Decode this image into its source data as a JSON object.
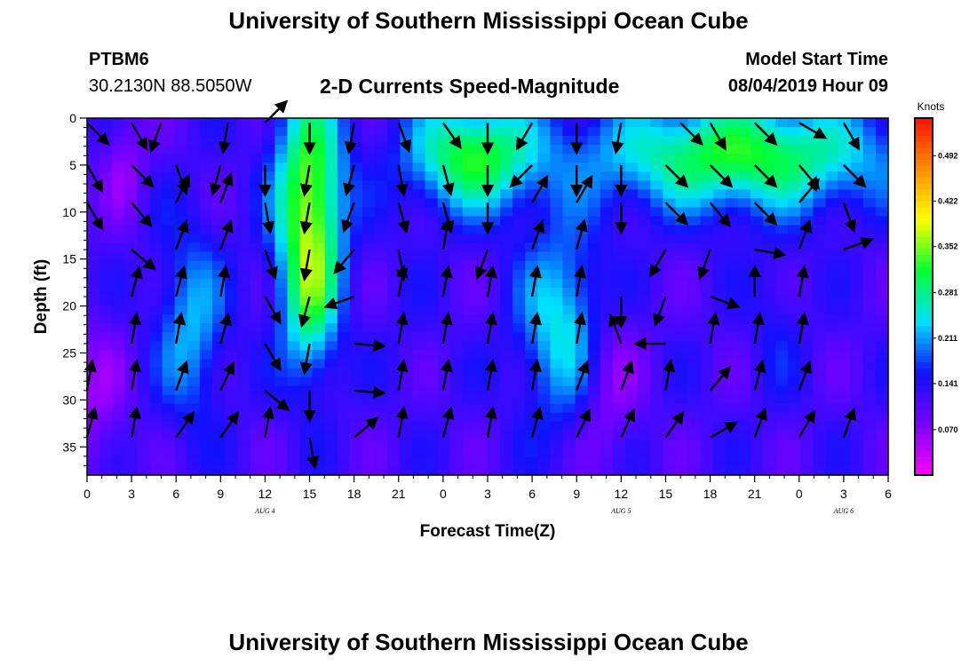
{
  "header": {
    "top_title": "University of Southern Mississippi Ocean Cube",
    "station": "PTBM6",
    "coords": "30.2130N 88.5050W",
    "chart_title": "2-D Currents Speed-Magnitude",
    "model_start_label": "Model Start Time",
    "model_start_value": "08/04/2019 Hour 09",
    "bottom_title": "University of Southern Mississippi Ocean Cube"
  },
  "chart_data": {
    "type": "heatmap",
    "title": "2-D Currents Speed-Magnitude",
    "xlabel": "Forecast Time(Z)",
    "ylabel": "Depth (ft)",
    "x_ticks": [
      "0",
      "3",
      "6",
      "9",
      "12",
      "15",
      "18",
      "21",
      "0",
      "3",
      "6",
      "9",
      "12",
      "15",
      "18",
      "21",
      "0",
      "3",
      "6"
    ],
    "x_range_hours": [
      0,
      54
    ],
    "day_labels": [
      {
        "text": "AUG 4",
        "hour": 12
      },
      {
        "text": "AUG 5",
        "hour": 36
      },
      {
        "text": "AUG 6",
        "hour": 51
      }
    ],
    "y_ticks": [
      0,
      5,
      10,
      15,
      20,
      25,
      30,
      35
    ],
    "y_range_ft": [
      0,
      38
    ],
    "colorbar": {
      "unit": "Knots",
      "labels": [
        "0.492",
        "0.422",
        "0.352",
        "0.281",
        "0.211",
        "0.141",
        "0.070"
      ],
      "label_values": [
        0.492,
        0.422,
        0.352,
        0.281,
        0.211,
        0.141,
        0.07
      ],
      "range": [
        0.0,
        0.55
      ],
      "colors": [
        "#ff00ff",
        "#7a00ff",
        "#1010ff",
        "#00e0ff",
        "#00ff30",
        "#ffff00",
        "#ff9000",
        "#ff1000"
      ]
    },
    "speed_blobs": [
      {
        "t": 7,
        "d": 22,
        "st": 1.6,
        "sd": 7,
        "v": 0.22
      },
      {
        "t": 15,
        "d": 8,
        "st": 1.6,
        "sd": 8,
        "v": 0.35
      },
      {
        "t": 15,
        "d": 20,
        "st": 1.3,
        "sd": 6,
        "v": 0.25
      },
      {
        "t": 21.5,
        "d": 22,
        "st": 1.2,
        "sd": 6,
        "v": 0.13
      },
      {
        "t": 26,
        "d": 4,
        "st": 3,
        "sd": 4,
        "v": 0.32
      },
      {
        "t": 32,
        "d": 22,
        "st": 2,
        "sd": 7,
        "v": 0.25
      },
      {
        "t": 44,
        "d": 4,
        "st": 7,
        "sd": 4,
        "v": 0.32
      },
      {
        "t": 46.5,
        "d": 22,
        "st": 1.2,
        "sd": 6,
        "v": 0.15
      },
      {
        "t": 2.5,
        "d": 5,
        "st": 1,
        "sd": 4,
        "v": 0.07
      },
      {
        "t": 0.5,
        "d": 30,
        "st": 1.5,
        "sd": 6,
        "v": 0.07
      },
      {
        "t": 35,
        "d": 28,
        "st": 1.5,
        "sd": 6,
        "v": 0.06
      }
    ],
    "vectors": [
      {
        "t": 0,
        "d": 0.5,
        "deg": 135
      },
      {
        "t": 3,
        "d": 0.5,
        "deg": 150
      },
      {
        "t": 5,
        "d": 0.5,
        "deg": 200
      },
      {
        "t": 9.5,
        "d": 0.5,
        "deg": 190
      },
      {
        "t": 12,
        "d": 0.5,
        "deg": 45
      },
      {
        "t": 15,
        "d": 0.5,
        "deg": 180
      },
      {
        "t": 18,
        "d": 0.5,
        "deg": 190
      },
      {
        "t": 21,
        "d": 0.5,
        "deg": 160
      },
      {
        "t": 24,
        "d": 0.5,
        "deg": 145
      },
      {
        "t": 27,
        "d": 0.5,
        "deg": 180
      },
      {
        "t": 30,
        "d": 0.5,
        "deg": 210
      },
      {
        "t": 33,
        "d": 0.5,
        "deg": 180
      },
      {
        "t": 36,
        "d": 0.5,
        "deg": 190
      },
      {
        "t": 40,
        "d": 0.5,
        "deg": 135
      },
      {
        "t": 42,
        "d": 0.5,
        "deg": 150
      },
      {
        "t": 45,
        "d": 0.5,
        "deg": 135
      },
      {
        "t": 48,
        "d": 0.5,
        "deg": 120
      },
      {
        "t": 51,
        "d": 0.5,
        "deg": 150
      },
      {
        "t": 0,
        "d": 5,
        "deg": 150
      },
      {
        "t": 3,
        "d": 5,
        "deg": 135
      },
      {
        "t": 6,
        "d": 5,
        "deg": 160
      },
      {
        "t": 9,
        "d": 5,
        "deg": 195
      },
      {
        "t": 12,
        "d": 5,
        "deg": 180
      },
      {
        "t": 15,
        "d": 5,
        "deg": 190
      },
      {
        "t": 18,
        "d": 5,
        "deg": 195
      },
      {
        "t": 21,
        "d": 5,
        "deg": 170
      },
      {
        "t": 24,
        "d": 5,
        "deg": 165
      },
      {
        "t": 27,
        "d": 5,
        "deg": 180
      },
      {
        "t": 30,
        "d": 5,
        "deg": 225
      },
      {
        "t": 33,
        "d": 5,
        "deg": 180
      },
      {
        "t": 36,
        "d": 5,
        "deg": 180
      },
      {
        "t": 39,
        "d": 5,
        "deg": 135
      },
      {
        "t": 42,
        "d": 5,
        "deg": 135
      },
      {
        "t": 45,
        "d": 5,
        "deg": 135
      },
      {
        "t": 48,
        "d": 5,
        "deg": 140
      },
      {
        "t": 51,
        "d": 5,
        "deg": 135
      },
      {
        "t": 0,
        "d": 9,
        "deg": 150
      },
      {
        "t": 3,
        "d": 9,
        "deg": 140
      },
      {
        "t": 6,
        "d": 9,
        "deg": 25
      },
      {
        "t": 9,
        "d": 9,
        "deg": 20
      },
      {
        "t": 12,
        "d": 9,
        "deg": 170
      },
      {
        "t": 15,
        "d": 9,
        "deg": 190
      },
      {
        "t": 18,
        "d": 9,
        "deg": 200
      },
      {
        "t": 21,
        "d": 9,
        "deg": 165
      },
      {
        "t": 24,
        "d": 9,
        "deg": 165
      },
      {
        "t": 27,
        "d": 9,
        "deg": 180
      },
      {
        "t": 30,
        "d": 9,
        "deg": 30
      },
      {
        "t": 33,
        "d": 9,
        "deg": 30
      },
      {
        "t": 36,
        "d": 9,
        "deg": 180
      },
      {
        "t": 39,
        "d": 9,
        "deg": 135
      },
      {
        "t": 42,
        "d": 9,
        "deg": 140
      },
      {
        "t": 45,
        "d": 9,
        "deg": 135
      },
      {
        "t": 48,
        "d": 9,
        "deg": 40
      },
      {
        "t": 51,
        "d": 9,
        "deg": 160
      },
      {
        "t": 3,
        "d": 14,
        "deg": 130
      },
      {
        "t": 6,
        "d": 14,
        "deg": 20
      },
      {
        "t": 9,
        "d": 14,
        "deg": 20
      },
      {
        "t": 12,
        "d": 14,
        "deg": 160
      },
      {
        "t": 15,
        "d": 14,
        "deg": 190
      },
      {
        "t": 18,
        "d": 14,
        "deg": 220
      },
      {
        "t": 21,
        "d": 14,
        "deg": 170
      },
      {
        "t": 24,
        "d": 14,
        "deg": 10
      },
      {
        "t": 27,
        "d": 14,
        "deg": 200
      },
      {
        "t": 30,
        "d": 14,
        "deg": 20
      },
      {
        "t": 33,
        "d": 14,
        "deg": 15
      },
      {
        "t": 39,
        "d": 14,
        "deg": 210
      },
      {
        "t": 42,
        "d": 14,
        "deg": 200
      },
      {
        "t": 45,
        "d": 14,
        "deg": 100
      },
      {
        "t": 48,
        "d": 14,
        "deg": 20
      },
      {
        "t": 51,
        "d": 14,
        "deg": 70
      },
      {
        "t": 3,
        "d": 19,
        "deg": 15
      },
      {
        "t": 6,
        "d": 19,
        "deg": 15
      },
      {
        "t": 9,
        "d": 19,
        "deg": 10
      },
      {
        "t": 12,
        "d": 19,
        "deg": 150
      },
      {
        "t": 15,
        "d": 19,
        "deg": 195
      },
      {
        "t": 18,
        "d": 19,
        "deg": 250
      },
      {
        "t": 21,
        "d": 19,
        "deg": 10
      },
      {
        "t": 24,
        "d": 19,
        "deg": 10
      },
      {
        "t": 27,
        "d": 19,
        "deg": 10
      },
      {
        "t": 30,
        "d": 19,
        "deg": 10
      },
      {
        "t": 33,
        "d": 19,
        "deg": 10
      },
      {
        "t": 36,
        "d": 19,
        "deg": 180
      },
      {
        "t": 39,
        "d": 19,
        "deg": 200
      },
      {
        "t": 42,
        "d": 19,
        "deg": 110
      },
      {
        "t": 45,
        "d": 19,
        "deg": 0
      },
      {
        "t": 48,
        "d": 19,
        "deg": 10
      },
      {
        "t": 3,
        "d": 24,
        "deg": 10
      },
      {
        "t": 6,
        "d": 24,
        "deg": 10
      },
      {
        "t": 9,
        "d": 24,
        "deg": 15
      },
      {
        "t": 12,
        "d": 24,
        "deg": 150
      },
      {
        "t": 15,
        "d": 24,
        "deg": 190
      },
      {
        "t": 18,
        "d": 24,
        "deg": 95
      },
      {
        "t": 21,
        "d": 24,
        "deg": 10
      },
      {
        "t": 24,
        "d": 24,
        "deg": 10
      },
      {
        "t": 27,
        "d": 24,
        "deg": 10
      },
      {
        "t": 30,
        "d": 24,
        "deg": 10
      },
      {
        "t": 33,
        "d": 24,
        "deg": 10
      },
      {
        "t": 36,
        "d": 24,
        "deg": 340
      },
      {
        "t": 39,
        "d": 24,
        "deg": 270
      },
      {
        "t": 42,
        "d": 24,
        "deg": 10
      },
      {
        "t": 45,
        "d": 24,
        "deg": 10
      },
      {
        "t": 48,
        "d": 24,
        "deg": 10
      },
      {
        "t": 0,
        "d": 29,
        "deg": 10
      },
      {
        "t": 3,
        "d": 29,
        "deg": 10
      },
      {
        "t": 6,
        "d": 29,
        "deg": 20
      },
      {
        "t": 9,
        "d": 29,
        "deg": 25
      },
      {
        "t": 12,
        "d": 29,
        "deg": 130
      },
      {
        "t": 15,
        "d": 29,
        "deg": 180
      },
      {
        "t": 18,
        "d": 29,
        "deg": 95
      },
      {
        "t": 21,
        "d": 29,
        "deg": 10
      },
      {
        "t": 24,
        "d": 29,
        "deg": 10
      },
      {
        "t": 27,
        "d": 29,
        "deg": 10
      },
      {
        "t": 30,
        "d": 29,
        "deg": 10
      },
      {
        "t": 33,
        "d": 29,
        "deg": 20
      },
      {
        "t": 36,
        "d": 29,
        "deg": 20
      },
      {
        "t": 39,
        "d": 29,
        "deg": 10
      },
      {
        "t": 42,
        "d": 29,
        "deg": 40
      },
      {
        "t": 45,
        "d": 29,
        "deg": 15
      },
      {
        "t": 48,
        "d": 29,
        "deg": 20
      },
      {
        "t": 0,
        "d": 34,
        "deg": 15
      },
      {
        "t": 3,
        "d": 34,
        "deg": 10
      },
      {
        "t": 6,
        "d": 34,
        "deg": 35
      },
      {
        "t": 9,
        "d": 34,
        "deg": 35
      },
      {
        "t": 12,
        "d": 34,
        "deg": 10
      },
      {
        "t": 15,
        "d": 34,
        "deg": 170
      },
      {
        "t": 18,
        "d": 34,
        "deg": 50
      },
      {
        "t": 21,
        "d": 34,
        "deg": 10
      },
      {
        "t": 24,
        "d": 34,
        "deg": 15
      },
      {
        "t": 27,
        "d": 34,
        "deg": 10
      },
      {
        "t": 30,
        "d": 34,
        "deg": 15
      },
      {
        "t": 33,
        "d": 34,
        "deg": 25
      },
      {
        "t": 36,
        "d": 34,
        "deg": 25
      },
      {
        "t": 39,
        "d": 34,
        "deg": 35
      },
      {
        "t": 42,
        "d": 34,
        "deg": 60
      },
      {
        "t": 45,
        "d": 34,
        "deg": 20
      },
      {
        "t": 48,
        "d": 34,
        "deg": 30
      },
      {
        "t": 51,
        "d": 34,
        "deg": 20
      }
    ]
  }
}
